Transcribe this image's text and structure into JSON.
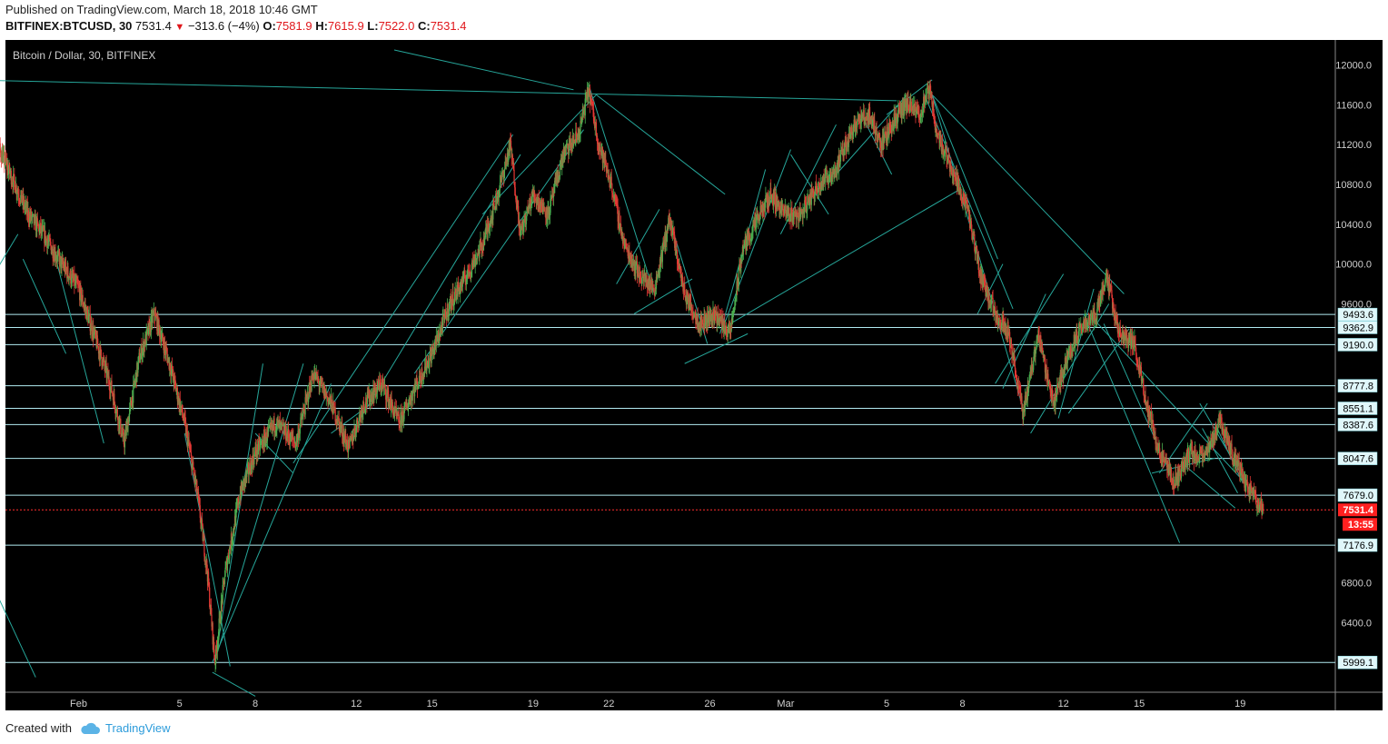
{
  "header": {
    "published": "Published on TradingView.com, March 18, 2018 10:46 GMT",
    "symbol": "BITFINEX:BTCUSD, 30",
    "last": "7531.4",
    "change": "−313.6 (−4%)",
    "o_label": "O:",
    "o_value": "7581.9",
    "h_label": "H:",
    "h_value": "7615.9",
    "l_label": "L:",
    "l_value": "7522.0",
    "c_label": "C:",
    "c_value": "7531.4"
  },
  "footer": {
    "created_with": "Created with",
    "brand": "TradingView"
  },
  "colors": {
    "background": "#000000",
    "bull": "#4caf50",
    "bear": "#e53935",
    "trend": "#26a69a",
    "level": "#b2ebf2",
    "last": "#ff2d2d"
  },
  "chart_data": {
    "type": "candlestick",
    "title": "Bitcoin / Dollar, 30, BITFINEX",
    "ylim": [
      5700,
      12250
    ],
    "y_ticks": [
      6400,
      6800,
      9600,
      10000,
      10400,
      10800,
      11200,
      11600,
      12000
    ],
    "x_ticks": [
      {
        "label": "Feb",
        "day": 32
      },
      {
        "label": "5",
        "day": 36
      },
      {
        "label": "8",
        "day": 39
      },
      {
        "label": "12",
        "day": 43
      },
      {
        "label": "15",
        "day": 46
      },
      {
        "label": "19",
        "day": 50
      },
      {
        "label": "22",
        "day": 53
      },
      {
        "label": "26",
        "day": 57
      },
      {
        "label": "Mar",
        "day": 60
      },
      {
        "label": "5",
        "day": 64
      },
      {
        "label": "8",
        "day": 67
      },
      {
        "label": "12",
        "day": 71
      },
      {
        "label": "15",
        "day": 74
      },
      {
        "label": "19",
        "day": 78
      }
    ],
    "levels": [
      9493.6,
      9362.9,
      9190.0,
      8777.8,
      8551.1,
      8387.6,
      8047.6,
      7679.0,
      7176.9,
      5999.1
    ],
    "last_price": 7531.4,
    "countdown": "13:55",
    "price_path": [
      [
        28.0,
        11700
      ],
      [
        28.6,
        11300
      ],
      [
        29.3,
        10900
      ],
      [
        30.0,
        10500
      ],
      [
        30.6,
        10300
      ],
      [
        31.2,
        10050
      ],
      [
        32.0,
        9750
      ],
      [
        32.6,
        9300
      ],
      [
        33.3,
        8750
      ],
      [
        33.8,
        8200
      ],
      [
        34.4,
        9050
      ],
      [
        35.0,
        9500
      ],
      [
        35.6,
        9000
      ],
      [
        36.2,
        8400
      ],
      [
        36.7,
        7700
      ],
      [
        37.1,
        6900
      ],
      [
        37.4,
        6000
      ],
      [
        37.8,
        6900
      ],
      [
        38.4,
        7700
      ],
      [
        39.0,
        8100
      ],
      [
        39.8,
        8400
      ],
      [
        40.6,
        8200
      ],
      [
        41.3,
        8900
      ],
      [
        42.0,
        8600
      ],
      [
        42.7,
        8150
      ],
      [
        43.3,
        8600
      ],
      [
        44.0,
        8800
      ],
      [
        44.7,
        8400
      ],
      [
        45.3,
        8750
      ],
      [
        46.0,
        9100
      ],
      [
        46.7,
        9600
      ],
      [
        47.4,
        9900
      ],
      [
        48.0,
        10200
      ],
      [
        48.6,
        10700
      ],
      [
        49.1,
        11200
      ],
      [
        49.5,
        10300
      ],
      [
        50.0,
        10700
      ],
      [
        50.6,
        10500
      ],
      [
        51.2,
        11100
      ],
      [
        51.8,
        11300
      ],
      [
        52.2,
        11750
      ],
      [
        52.6,
        11200
      ],
      [
        53.1,
        10800
      ],
      [
        53.6,
        10200
      ],
      [
        54.2,
        9900
      ],
      [
        54.8,
        9750
      ],
      [
        55.4,
        10450
      ],
      [
        56.0,
        9700
      ],
      [
        56.6,
        9400
      ],
      [
        57.2,
        9500
      ],
      [
        57.8,
        9300
      ],
      [
        58.3,
        10150
      ],
      [
        58.8,
        10400
      ],
      [
        59.4,
        10700
      ],
      [
        60.0,
        10500
      ],
      [
        60.6,
        10500
      ],
      [
        61.3,
        10800
      ],
      [
        62.0,
        10950
      ],
      [
        62.7,
        11400
      ],
      [
        63.3,
        11500
      ],
      [
        63.8,
        11200
      ],
      [
        64.3,
        11450
      ],
      [
        64.8,
        11600
      ],
      [
        65.3,
        11500
      ],
      [
        65.7,
        11750
      ],
      [
        66.0,
        11300
      ],
      [
        66.6,
        10950
      ],
      [
        67.2,
        10550
      ],
      [
        67.7,
        9900
      ],
      [
        68.3,
        9500
      ],
      [
        68.8,
        9350
      ],
      [
        69.4,
        8500
      ],
      [
        70.0,
        9300
      ],
      [
        70.6,
        8600
      ],
      [
        71.2,
        9100
      ],
      [
        71.8,
        9400
      ],
      [
        72.3,
        9500
      ],
      [
        72.7,
        9900
      ],
      [
        73.2,
        9300
      ],
      [
        73.8,
        9200
      ],
      [
        74.3,
        8600
      ],
      [
        74.8,
        8100
      ],
      [
        75.4,
        7800
      ],
      [
        76.0,
        8100
      ],
      [
        76.6,
        8050
      ],
      [
        77.2,
        8450
      ],
      [
        77.7,
        8100
      ],
      [
        78.2,
        7800
      ],
      [
        78.6,
        7650
      ],
      [
        78.9,
        7531.4
      ]
    ]
  }
}
